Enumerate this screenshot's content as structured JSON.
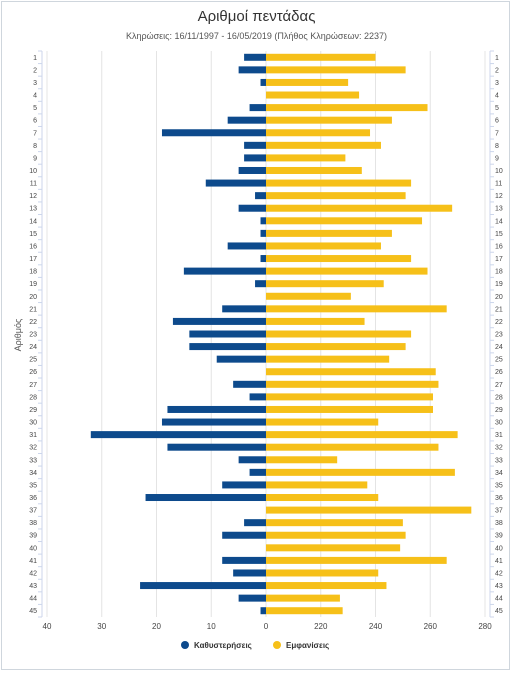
{
  "chart_data": {
    "type": "bar",
    "title": "Αριθμοί πεντάδας",
    "subtitle": "Κληρώσεις: 16/11/1997 - 16/05/2019 (Πλήθος Κληρώσεων: 2237)",
    "ylabel": "Αριθμός",
    "categories": [
      "1",
      "2",
      "3",
      "4",
      "5",
      "6",
      "7",
      "8",
      "9",
      "10",
      "11",
      "12",
      "13",
      "14",
      "15",
      "16",
      "17",
      "18",
      "19",
      "20",
      "21",
      "22",
      "23",
      "24",
      "25",
      "26",
      "27",
      "28",
      "29",
      "30",
      "31",
      "32",
      "33",
      "34",
      "35",
      "36",
      "37",
      "38",
      "39",
      "40",
      "41",
      "42",
      "43",
      "44",
      "45"
    ],
    "x_ticks_left": [
      "40",
      "30",
      "20",
      "10",
      "0"
    ],
    "x_ticks_right": [
      "220",
      "240",
      "260",
      "280"
    ],
    "series": [
      {
        "name": "Καθυστερήσεις",
        "color": "#0d4a8c",
        "side": "left",
        "xlim": [
          0,
          40
        ],
        "values": [
          4,
          5,
          1,
          0,
          3,
          7,
          19,
          4,
          4,
          5,
          11,
          2,
          5,
          1,
          1,
          7,
          1,
          15,
          2,
          0,
          8,
          17,
          14,
          14,
          9,
          0,
          6,
          3,
          18,
          19,
          32,
          18,
          5,
          3,
          8,
          22,
          0,
          4,
          8,
          0,
          8,
          6,
          23,
          5,
          1
        ]
      },
      {
        "name": "Εμφανίσεις",
        "color": "#f6c019",
        "side": "right",
        "xlim": [
          200,
          280
        ],
        "values": [
          240,
          251,
          230,
          234,
          259,
          246,
          238,
          242,
          229,
          235,
          253,
          251,
          268,
          257,
          246,
          242,
          253,
          259,
          243,
          231,
          266,
          236,
          253,
          251,
          245,
          262,
          263,
          261,
          261,
          241,
          270,
          263,
          226,
          269,
          237,
          241,
          275,
          250,
          251,
          249,
          266,
          241,
          244,
          227,
          228
        ]
      }
    ],
    "legend_position": "bottom",
    "grid": true
  }
}
